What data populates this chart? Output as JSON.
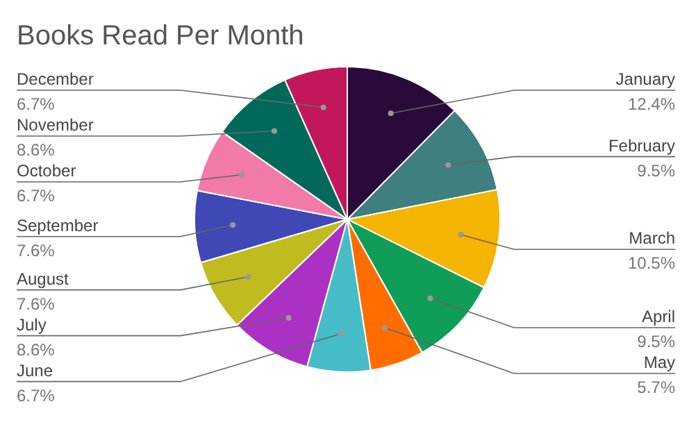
{
  "chart_data": {
    "type": "pie",
    "title": "Books Read Per Month",
    "categories": [
      "January",
      "February",
      "March",
      "April",
      "May",
      "June",
      "July",
      "August",
      "September",
      "October",
      "November",
      "December"
    ],
    "values": [
      12.4,
      9.5,
      10.5,
      9.5,
      5.7,
      6.7,
      8.6,
      7.6,
      7.6,
      6.7,
      8.6,
      6.7
    ],
    "value_labels": [
      "12.4%",
      "9.5%",
      "10.5%",
      "9.5%",
      "5.7%",
      "6.7%",
      "8.6%",
      "7.6%",
      "7.6%",
      "6.7%",
      "8.6%",
      "6.7%"
    ],
    "colors": [
      "#2a0a3a",
      "#3f7f7f",
      "#f4b400",
      "#0f9d58",
      "#ff6d00",
      "#46bdc6",
      "#ab30c4",
      "#c0bb1f",
      "#3f48b5",
      "#f27aa8",
      "#00695c",
      "#c2185b"
    ]
  }
}
